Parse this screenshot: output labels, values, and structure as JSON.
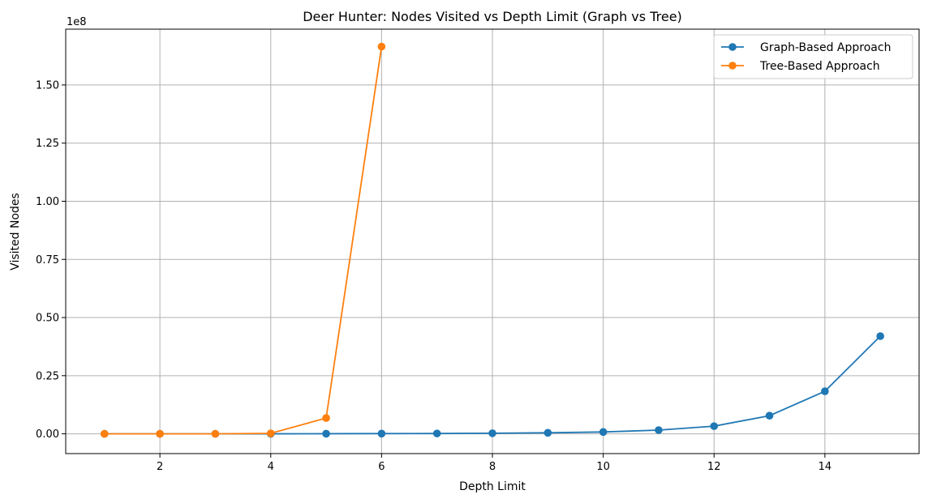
{
  "chart_data": {
    "type": "line",
    "title": "Deer Hunter: Nodes Visited vs Depth Limit (Graph vs Tree)",
    "xlabel": "Depth Limit",
    "ylabel": "Visited Nodes",
    "offset_text": "1e8",
    "xlim": [
      0.3,
      15.7
    ],
    "ylim": [
      -8500000,
      174000000
    ],
    "x_ticks": [
      2,
      4,
      6,
      8,
      10,
      12,
      14
    ],
    "y_ticks": [
      0,
      25000000,
      50000000,
      75000000,
      100000000,
      125000000,
      150000000
    ],
    "y_tick_labels": [
      "0.00",
      "0.25",
      "0.50",
      "0.75",
      "1.00",
      "1.25",
      "1.50"
    ],
    "grid": true,
    "legend_position": "top-right",
    "series": [
      {
        "name": "Graph-Based Approach",
        "color": "#1f77b4",
        "x": [
          1,
          2,
          3,
          4,
          5,
          6,
          7,
          8,
          9,
          10,
          11,
          12,
          13,
          14,
          15
        ],
        "y": [
          10,
          100,
          1000,
          10000,
          50000,
          100000,
          150000,
          250000,
          450000,
          800000,
          1600000,
          3300000,
          7800000,
          18300000,
          42000000
        ]
      },
      {
        "name": "Tree-Based Approach",
        "color": "#ff7f0e",
        "x": [
          1,
          2,
          3,
          4,
          5,
          6
        ],
        "y": [
          10,
          100,
          1500,
          200000,
          6800000,
          166500000
        ]
      }
    ]
  }
}
